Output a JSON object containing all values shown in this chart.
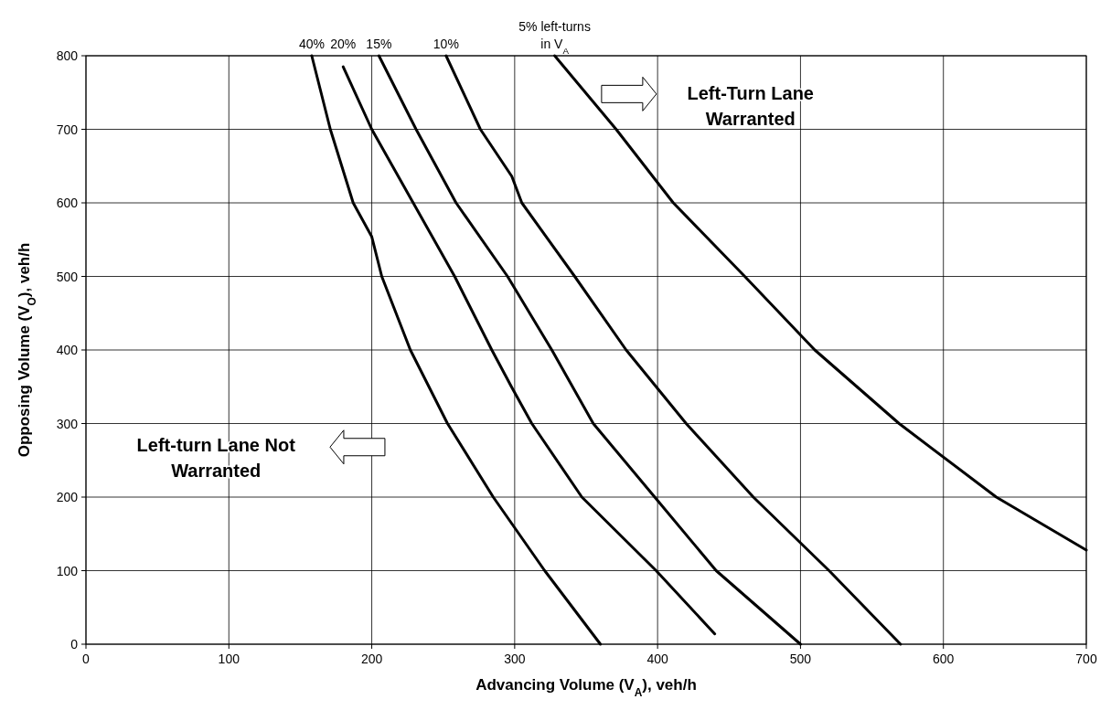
{
  "chart_data": {
    "type": "line",
    "xlabel": "Advancing Volume (V$_{A}$), veh/h",
    "ylabel": "Opposing Volume (V$_{O}$), veh/h",
    "xlim": [
      0,
      700
    ],
    "ylim": [
      0,
      800
    ],
    "xticks": [
      0,
      100,
      200,
      300,
      400,
      500,
      600,
      700
    ],
    "yticks": [
      0,
      100,
      200,
      300,
      400,
      500,
      600,
      700,
      800
    ],
    "grid": true,
    "marker": "none",
    "line_style": "solid",
    "series": [
      {
        "name": "40%",
        "color": "#000000",
        "x": [
          158,
          171,
          187,
          200,
          207,
          227,
          253,
          285,
          321,
          360
        ],
        "values": [
          800,
          700,
          600,
          554,
          500,
          400,
          300,
          200,
          100,
          0
        ]
      },
      {
        "name": "20%",
        "color": "#000000",
        "x": [
          180,
          200,
          229,
          258,
          284,
          298,
          312,
          347,
          399,
          440
        ],
        "values": [
          785,
          700,
          600,
          500,
          400,
          349,
          300,
          200,
          100,
          14
        ]
      },
      {
        "name": "15%",
        "color": "#000000",
        "x": [
          205,
          231,
          259,
          295,
          326,
          355,
          398,
          441,
          500
        ],
        "values": [
          800,
          700,
          600,
          500,
          400,
          300,
          200,
          100,
          0
        ]
      },
      {
        "name": "10%",
        "color": "#000000",
        "x": [
          252,
          276,
          298,
          305,
          342,
          378,
          420,
          467,
          520,
          570
        ],
        "values": [
          800,
          700,
          636,
          600,
          500,
          400,
          300,
          200,
          100,
          0
        ]
      },
      {
        "name": "5% left-turns\nin V$_{A}$",
        "color": "#000000",
        "x": [
          328,
          371,
          411,
          461,
          510,
          569,
          637,
          700
        ],
        "values": [
          800,
          700,
          600,
          500,
          400,
          300,
          200,
          128
        ]
      }
    ],
    "annotations": [
      "Left-Turn Lane\nWarranted",
      "Left-turn Lane Not\nWarranted"
    ]
  }
}
